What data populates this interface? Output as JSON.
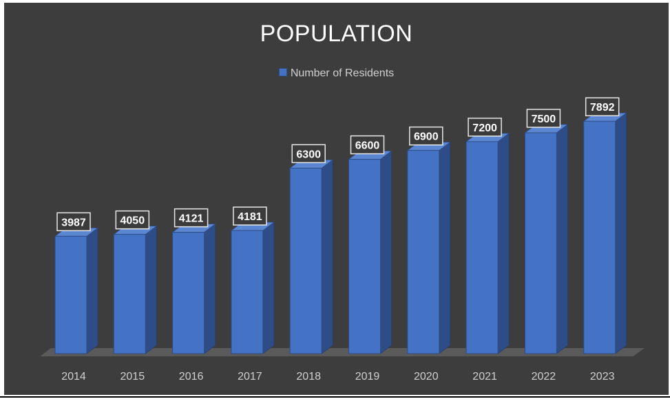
{
  "chart_data": {
    "type": "bar",
    "title": "POPULATION",
    "categories": [
      "2014",
      "2015",
      "2016",
      "2017",
      "2018",
      "2019",
      "2020",
      "2021",
      "2022",
      "2023"
    ],
    "series": [
      {
        "name": "Number of Residents",
        "values": [
          3987,
          4050,
          4121,
          4181,
          6300,
          6600,
          6900,
          7200,
          7500,
          7892
        ]
      }
    ],
    "data_labels": [
      "3987",
      "4050",
      "4121",
      "4181",
      "6300",
      "6600",
      "6900",
      "7200",
      "7500",
      "7892"
    ],
    "ylim": [
      0,
      8000
    ],
    "grid": false,
    "legend_position": "top",
    "colors": {
      "background": "#3d3d3d",
      "bar_front": "#4472c4",
      "bar_side": "#2e4d86",
      "bar_top": "#5b86d1",
      "floor": "#5a5a5a",
      "label_bg": "#3b3b3b",
      "label_text": "#ffffff",
      "tick_text": "#d0d0d0"
    },
    "style": "3d-column"
  }
}
